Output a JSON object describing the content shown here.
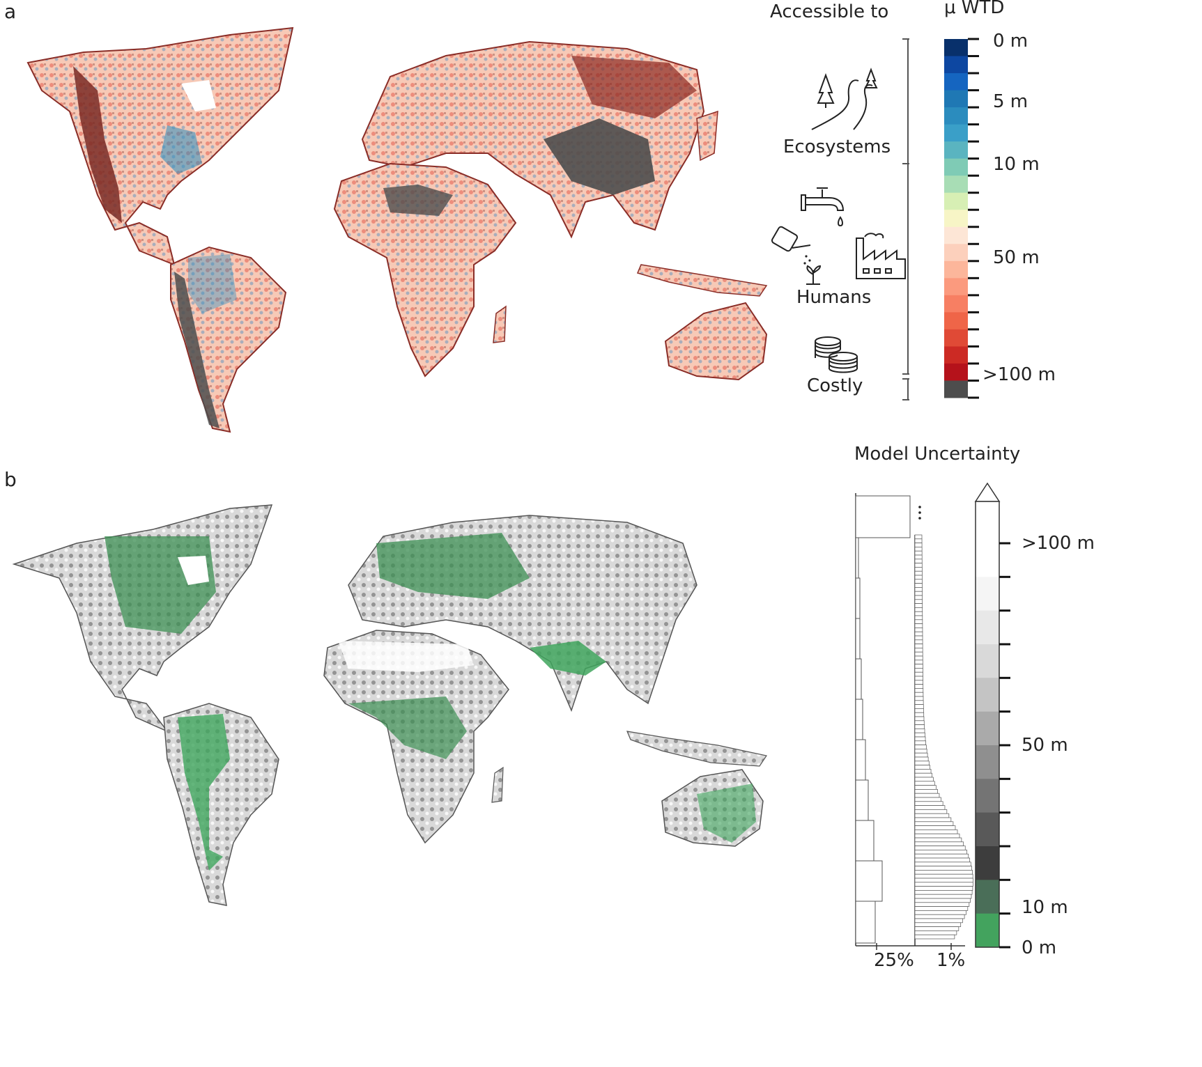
{
  "panel_a": {
    "letter": "a",
    "access_header": "Accessible to",
    "wtd_header": "μ WTD",
    "groups": [
      {
        "label": "Ecosystems",
        "icon": "trees-river-icon"
      },
      {
        "label": "Humans",
        "icon": "faucet-icon"
      },
      {
        "label": "Costly",
        "icon": "coins-icon"
      }
    ],
    "human_extra_icons": [
      "watering-can-icon",
      "factory-icon"
    ],
    "colorbar": {
      "tick_labels": [
        "0 m",
        "5 m",
        "10 m",
        "50 m",
        ">100 m"
      ],
      "colors": [
        "#08306b",
        "#0d47a1",
        "#1565c0",
        "#1f78b4",
        "#2b8cbe",
        "#3a9fc8",
        "#5ab4c0",
        "#7fcbb5",
        "#a8ddb5",
        "#d7efb4",
        "#f7f5c6",
        "#fde6d6",
        "#fcd0bc",
        "#fcb69b",
        "#fb9a7e",
        "#f77f63",
        "#ef6548",
        "#e04a36",
        "#cc2a24",
        "#b5121b",
        "#4d4d4d"
      ]
    }
  },
  "panel_b": {
    "letter": "b",
    "title": "Model Uncertainty",
    "hist_labels": [
      "25%",
      "1%"
    ],
    "colorbar": {
      "tick_labels": [
        ">100 m",
        "50 m",
        "10 m",
        "0 m"
      ],
      "colors": [
        "#ffffff",
        "#f5f5f5",
        "#e8e8e8",
        "#d9d9d9",
        "#c4c4c4",
        "#aaaaaa",
        "#8f8f8f",
        "#747474",
        "#595959",
        "#3d3d3d",
        "#4a6e58",
        "#43a35e"
      ]
    }
  }
}
